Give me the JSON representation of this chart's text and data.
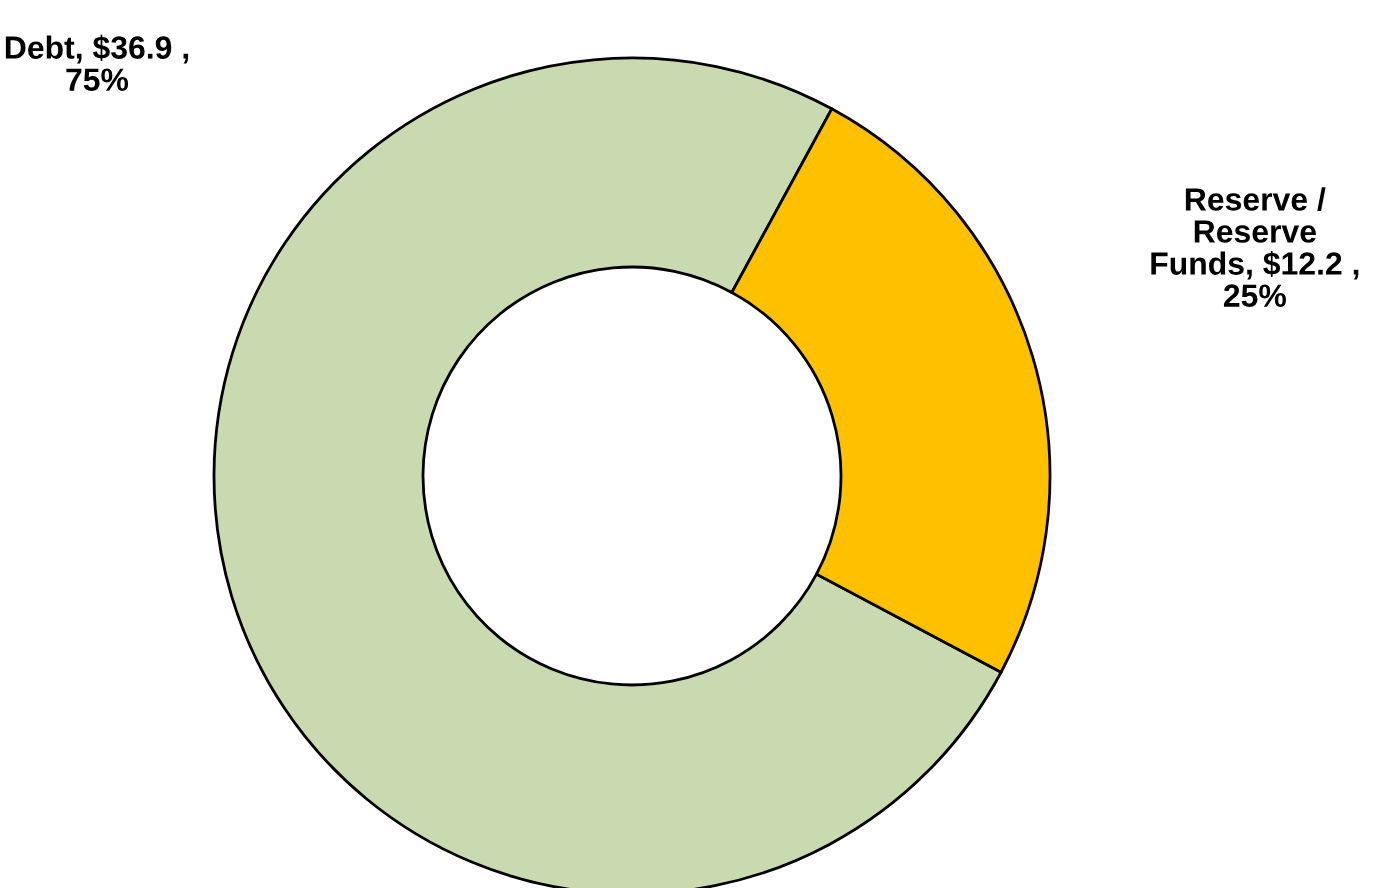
{
  "chart_data": {
    "type": "donut",
    "categories": [
      "Debt",
      "Reserve /\nReserve\nFunds"
    ],
    "values": [
      36.9,
      12.2
    ],
    "colors": [
      "#c9d9b0",
      "#ffc000"
    ],
    "value_labels": [
      "$36.9 ,\n75%",
      "$12.2 ,\n25%"
    ],
    "legend": false
  }
}
